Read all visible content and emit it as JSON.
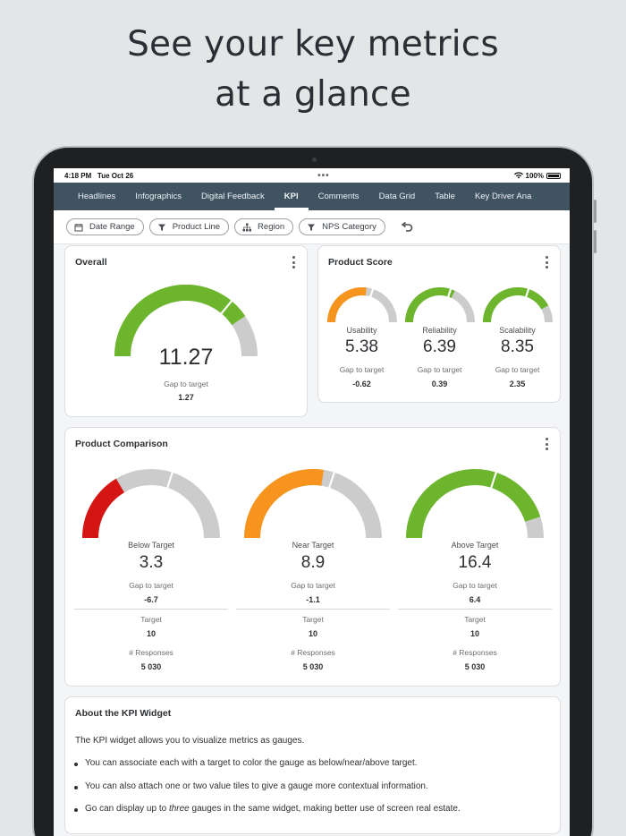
{
  "promo": {
    "headline_line1": "See your key metrics",
    "headline_line2": "at a glance"
  },
  "status_bar": {
    "time": "4:18 PM",
    "date": "Tue Oct 26",
    "battery": "100%"
  },
  "nav": {
    "tabs": [
      "Headlines",
      "Infographics",
      "Digital Feedback",
      "KPI",
      "Comments",
      "Data Grid",
      "Table",
      "Key Driver Ana"
    ],
    "active_tab": "KPI"
  },
  "filters": [
    {
      "label": "Date Range",
      "icon": "calendar-icon"
    },
    {
      "label": "Product Line",
      "icon": "filter-icon"
    },
    {
      "label": "Region",
      "icon": "hierarchy-icon"
    },
    {
      "label": "NPS Category",
      "icon": "filter-icon"
    }
  ],
  "colors": {
    "green": "#6cb52d",
    "orange": "#f7941d",
    "red": "#d51414",
    "grey": "#cccccc",
    "nav": "#3f5361"
  },
  "overall": {
    "title": "Overall",
    "value": "11.27",
    "gap_label": "Gap to target",
    "gap_value": "1.27",
    "fraction": 0.81,
    "target_fraction": 0.72,
    "color": "#6cb52d"
  },
  "product_score": {
    "title": "Product Score",
    "items": [
      {
        "name": "Usability",
        "value": "5.38",
        "gap_label": "Gap to target",
        "gap_value": "-0.62",
        "fraction": 0.54,
        "target_fraction": 0.6,
        "color": "#f7941d"
      },
      {
        "name": "Reliability",
        "value": "6.39",
        "gap_label": "Gap to target",
        "gap_value": "0.39",
        "fraction": 0.64,
        "target_fraction": 0.6,
        "color": "#6cb52d"
      },
      {
        "name": "Scalability",
        "value": "8.35",
        "gap_label": "Gap to target",
        "gap_value": "2.35",
        "fraction": 0.84,
        "target_fraction": 0.6,
        "color": "#6cb52d"
      }
    ]
  },
  "product_comparison": {
    "title": "Product Comparison",
    "items": [
      {
        "name": "Below Target",
        "value": "3.3",
        "gap_label": "Gap to target",
        "gap_value": "-6.7",
        "target_label": "Target",
        "target_value": "10",
        "responses_label": "# Responses",
        "responses_value": "5 030",
        "fraction": 0.33,
        "target_fraction": 0.6,
        "color": "#d51414"
      },
      {
        "name": "Near Target",
        "value": "8.9",
        "gap_label": "Gap to target",
        "gap_value": "-1.1",
        "target_label": "Target",
        "target_value": "10",
        "responses_label": "# Responses",
        "responses_value": "5 030",
        "fraction": 0.55,
        "target_fraction": 0.6,
        "color": "#f7941d"
      },
      {
        "name": "Above Target",
        "value": "16.4",
        "gap_label": "Gap to target",
        "gap_value": "6.4",
        "target_label": "Target",
        "target_value": "10",
        "responses_label": "# Responses",
        "responses_value": "5 030",
        "fraction": 0.9,
        "target_fraction": 0.6,
        "color": "#6cb52d"
      }
    ]
  },
  "about": {
    "title": "About the KPI Widget",
    "intro": "The KPI widget allows you to visualize metrics as gauges.",
    "bullets": [
      "You can associate each with a target to color the gauge as below/near/above target.",
      "You can also attach one or two value tiles to give a gauge more contextual information."
    ],
    "bullet3_before": "Go can display up to ",
    "bullet3_em": "three",
    "bullet3_after": " gauges in the same widget, making better use of screen real estate."
  }
}
